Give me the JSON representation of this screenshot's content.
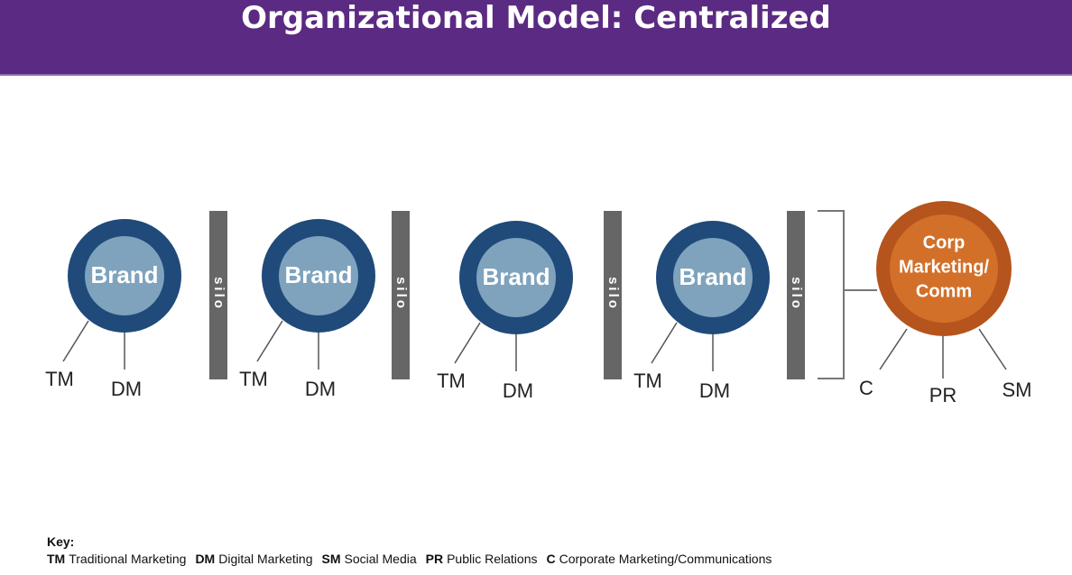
{
  "header": {
    "title": "Organizational Model: Centralized"
  },
  "brands": [
    {
      "label": "Brand",
      "left": "TM",
      "right": "DM"
    },
    {
      "label": "Brand",
      "left": "TM",
      "right": "DM"
    },
    {
      "label": "Brand",
      "left": "TM",
      "right": "DM"
    },
    {
      "label": "Brand",
      "left": "TM",
      "right": "DM"
    }
  ],
  "silos": [
    "silo",
    "silo",
    "silo",
    "silo"
  ],
  "corp": {
    "lines": [
      "Corp",
      "Marketing/",
      "Comm"
    ],
    "links": [
      "C",
      "PR",
      "SM"
    ]
  },
  "key": {
    "title": "Key:",
    "items": [
      {
        "abbr": "TM",
        "text": "Traditional Marketing"
      },
      {
        "abbr": "DM",
        "text": "Digital Marketing"
      },
      {
        "abbr": "SM",
        "text": "Social Media"
      },
      {
        "abbr": "PR",
        "text": "Public Relations"
      },
      {
        "abbr": "C",
        "text": "Corporate Marketing/Communications"
      }
    ]
  }
}
